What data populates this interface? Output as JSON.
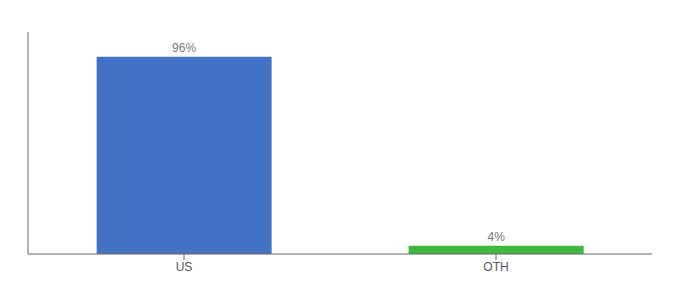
{
  "chart_data": {
    "type": "bar",
    "categories": [
      "US",
      "OTH"
    ],
    "values": [
      96,
      4
    ],
    "value_labels": [
      "96%",
      "4%"
    ],
    "colors": [
      "#4472c4",
      "#3dba3d"
    ],
    "ylim": [
      0,
      108
    ],
    "data_labels": true,
    "tick_labels": "x"
  }
}
